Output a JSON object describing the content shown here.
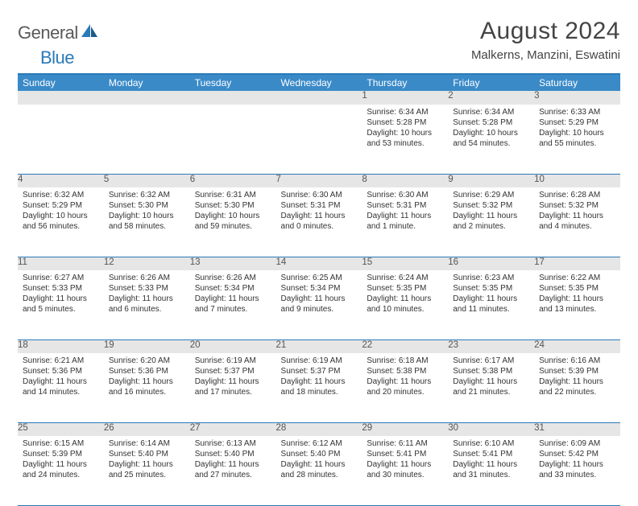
{
  "brand": {
    "word1": "General",
    "word2": "Blue"
  },
  "title": "August 2024",
  "location": "Malkerns, Manzini, Eswatini",
  "colors": {
    "header_bg": "#3a8ac8",
    "header_text": "#ffffff",
    "rule": "#2b7ab8",
    "daynum_bg": "#e6e6e6",
    "body_text": "#333333",
    "logo_gray": "#5a5a5a",
    "logo_blue": "#2b7ab8"
  },
  "weekdays": [
    "Sunday",
    "Monday",
    "Tuesday",
    "Wednesday",
    "Thursday",
    "Friday",
    "Saturday"
  ],
  "weeks": [
    {
      "nums": [
        "",
        "",
        "",
        "",
        "1",
        "2",
        "3"
      ],
      "days": [
        null,
        null,
        null,
        null,
        {
          "sunrise": "Sunrise: 6:34 AM",
          "sunset": "Sunset: 5:28 PM",
          "dl1": "Daylight: 10 hours",
          "dl2": "and 53 minutes."
        },
        {
          "sunrise": "Sunrise: 6:34 AM",
          "sunset": "Sunset: 5:28 PM",
          "dl1": "Daylight: 10 hours",
          "dl2": "and 54 minutes."
        },
        {
          "sunrise": "Sunrise: 6:33 AM",
          "sunset": "Sunset: 5:29 PM",
          "dl1": "Daylight: 10 hours",
          "dl2": "and 55 minutes."
        }
      ]
    },
    {
      "nums": [
        "4",
        "5",
        "6",
        "7",
        "8",
        "9",
        "10"
      ],
      "days": [
        {
          "sunrise": "Sunrise: 6:32 AM",
          "sunset": "Sunset: 5:29 PM",
          "dl1": "Daylight: 10 hours",
          "dl2": "and 56 minutes."
        },
        {
          "sunrise": "Sunrise: 6:32 AM",
          "sunset": "Sunset: 5:30 PM",
          "dl1": "Daylight: 10 hours",
          "dl2": "and 58 minutes."
        },
        {
          "sunrise": "Sunrise: 6:31 AM",
          "sunset": "Sunset: 5:30 PM",
          "dl1": "Daylight: 10 hours",
          "dl2": "and 59 minutes."
        },
        {
          "sunrise": "Sunrise: 6:30 AM",
          "sunset": "Sunset: 5:31 PM",
          "dl1": "Daylight: 11 hours",
          "dl2": "and 0 minutes."
        },
        {
          "sunrise": "Sunrise: 6:30 AM",
          "sunset": "Sunset: 5:31 PM",
          "dl1": "Daylight: 11 hours",
          "dl2": "and 1 minute."
        },
        {
          "sunrise": "Sunrise: 6:29 AM",
          "sunset": "Sunset: 5:32 PM",
          "dl1": "Daylight: 11 hours",
          "dl2": "and 2 minutes."
        },
        {
          "sunrise": "Sunrise: 6:28 AM",
          "sunset": "Sunset: 5:32 PM",
          "dl1": "Daylight: 11 hours",
          "dl2": "and 4 minutes."
        }
      ]
    },
    {
      "nums": [
        "11",
        "12",
        "13",
        "14",
        "15",
        "16",
        "17"
      ],
      "days": [
        {
          "sunrise": "Sunrise: 6:27 AM",
          "sunset": "Sunset: 5:33 PM",
          "dl1": "Daylight: 11 hours",
          "dl2": "and 5 minutes."
        },
        {
          "sunrise": "Sunrise: 6:26 AM",
          "sunset": "Sunset: 5:33 PM",
          "dl1": "Daylight: 11 hours",
          "dl2": "and 6 minutes."
        },
        {
          "sunrise": "Sunrise: 6:26 AM",
          "sunset": "Sunset: 5:34 PM",
          "dl1": "Daylight: 11 hours",
          "dl2": "and 7 minutes."
        },
        {
          "sunrise": "Sunrise: 6:25 AM",
          "sunset": "Sunset: 5:34 PM",
          "dl1": "Daylight: 11 hours",
          "dl2": "and 9 minutes."
        },
        {
          "sunrise": "Sunrise: 6:24 AM",
          "sunset": "Sunset: 5:35 PM",
          "dl1": "Daylight: 11 hours",
          "dl2": "and 10 minutes."
        },
        {
          "sunrise": "Sunrise: 6:23 AM",
          "sunset": "Sunset: 5:35 PM",
          "dl1": "Daylight: 11 hours",
          "dl2": "and 11 minutes."
        },
        {
          "sunrise": "Sunrise: 6:22 AM",
          "sunset": "Sunset: 5:35 PM",
          "dl1": "Daylight: 11 hours",
          "dl2": "and 13 minutes."
        }
      ]
    },
    {
      "nums": [
        "18",
        "19",
        "20",
        "21",
        "22",
        "23",
        "24"
      ],
      "days": [
        {
          "sunrise": "Sunrise: 6:21 AM",
          "sunset": "Sunset: 5:36 PM",
          "dl1": "Daylight: 11 hours",
          "dl2": "and 14 minutes."
        },
        {
          "sunrise": "Sunrise: 6:20 AM",
          "sunset": "Sunset: 5:36 PM",
          "dl1": "Daylight: 11 hours",
          "dl2": "and 16 minutes."
        },
        {
          "sunrise": "Sunrise: 6:19 AM",
          "sunset": "Sunset: 5:37 PM",
          "dl1": "Daylight: 11 hours",
          "dl2": "and 17 minutes."
        },
        {
          "sunrise": "Sunrise: 6:19 AM",
          "sunset": "Sunset: 5:37 PM",
          "dl1": "Daylight: 11 hours",
          "dl2": "and 18 minutes."
        },
        {
          "sunrise": "Sunrise: 6:18 AM",
          "sunset": "Sunset: 5:38 PM",
          "dl1": "Daylight: 11 hours",
          "dl2": "and 20 minutes."
        },
        {
          "sunrise": "Sunrise: 6:17 AM",
          "sunset": "Sunset: 5:38 PM",
          "dl1": "Daylight: 11 hours",
          "dl2": "and 21 minutes."
        },
        {
          "sunrise": "Sunrise: 6:16 AM",
          "sunset": "Sunset: 5:39 PM",
          "dl1": "Daylight: 11 hours",
          "dl2": "and 22 minutes."
        }
      ]
    },
    {
      "nums": [
        "25",
        "26",
        "27",
        "28",
        "29",
        "30",
        "31"
      ],
      "days": [
        {
          "sunrise": "Sunrise: 6:15 AM",
          "sunset": "Sunset: 5:39 PM",
          "dl1": "Daylight: 11 hours",
          "dl2": "and 24 minutes."
        },
        {
          "sunrise": "Sunrise: 6:14 AM",
          "sunset": "Sunset: 5:40 PM",
          "dl1": "Daylight: 11 hours",
          "dl2": "and 25 minutes."
        },
        {
          "sunrise": "Sunrise: 6:13 AM",
          "sunset": "Sunset: 5:40 PM",
          "dl1": "Daylight: 11 hours",
          "dl2": "and 27 minutes."
        },
        {
          "sunrise": "Sunrise: 6:12 AM",
          "sunset": "Sunset: 5:40 PM",
          "dl1": "Daylight: 11 hours",
          "dl2": "and 28 minutes."
        },
        {
          "sunrise": "Sunrise: 6:11 AM",
          "sunset": "Sunset: 5:41 PM",
          "dl1": "Daylight: 11 hours",
          "dl2": "and 30 minutes."
        },
        {
          "sunrise": "Sunrise: 6:10 AM",
          "sunset": "Sunset: 5:41 PM",
          "dl1": "Daylight: 11 hours",
          "dl2": "and 31 minutes."
        },
        {
          "sunrise": "Sunrise: 6:09 AM",
          "sunset": "Sunset: 5:42 PM",
          "dl1": "Daylight: 11 hours",
          "dl2": "and 33 minutes."
        }
      ]
    }
  ]
}
